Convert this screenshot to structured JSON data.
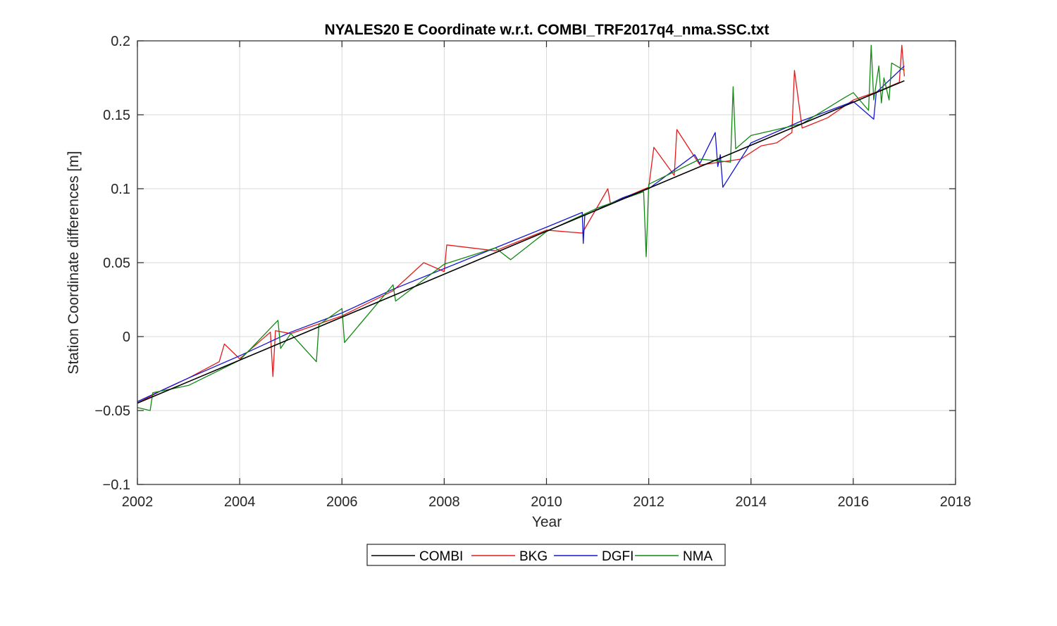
{
  "chart_data": {
    "type": "line",
    "title": "NYALES20 E Coordinate w.r.t. COMBI_TRF2017q4_nma.SSC.txt",
    "xlabel": "Year",
    "ylabel": "Station Coordinate differences [m]",
    "xlim": [
      2002,
      2018
    ],
    "ylim": [
      -0.1,
      0.2
    ],
    "xticks": [
      2002,
      2004,
      2006,
      2008,
      2010,
      2012,
      2014,
      2016,
      2018
    ],
    "yticks": [
      -0.1,
      -0.05,
      0,
      0.05,
      0.1,
      0.15,
      0.2
    ],
    "xtick_labels": [
      "2002",
      "2004",
      "2006",
      "2008",
      "2010",
      "2012",
      "2014",
      "2016",
      "2018"
    ],
    "ytick_labels": [
      "−0.1",
      "−0.05",
      "0",
      "0.05",
      "0.1",
      "0.15",
      "0.2"
    ],
    "grid": true,
    "legend_position": "bottom-center",
    "series": [
      {
        "name": "COMBI",
        "color": "#000000",
        "x": [
          2002.0,
          2017.0
        ],
        "y": [
          -0.045,
          0.173
        ]
      },
      {
        "name": "BKG",
        "color": "#e31a1c",
        "x": [
          2002.0,
          2002.5,
          2003.0,
          2003.6,
          2003.7,
          2004.0,
          2004.6,
          2004.65,
          2004.7,
          2005.0,
          2006.0,
          2007.0,
          2007.6,
          2008.0,
          2008.05,
          2009.0,
          2010.0,
          2010.7,
          2011.2,
          2011.25,
          2012.0,
          2012.1,
          2012.5,
          2012.55,
          2013.0,
          2013.8,
          2014.2,
          2014.5,
          2014.8,
          2014.85,
          2015.0,
          2015.5,
          2016.0,
          2016.5,
          2016.9,
          2016.95,
          2017.0
        ],
        "y": [
          -0.045,
          -0.036,
          -0.028,
          -0.017,
          -0.005,
          -0.015,
          0.003,
          -0.027,
          0.004,
          0.002,
          0.014,
          0.031,
          0.05,
          0.044,
          0.062,
          0.058,
          0.072,
          0.07,
          0.1,
          0.09,
          0.101,
          0.128,
          0.109,
          0.14,
          0.116,
          0.12,
          0.129,
          0.131,
          0.138,
          0.18,
          0.141,
          0.148,
          0.16,
          0.166,
          0.172,
          0.197,
          0.176
        ]
      },
      {
        "name": "DGFI",
        "color": "#1515d1",
        "x": [
          2002.0,
          2003.0,
          2004.0,
          2005.0,
          2006.0,
          2007.0,
          2008.0,
          2009.0,
          2010.0,
          2010.7,
          2010.72,
          2010.75,
          2011.5,
          2012.0,
          2012.9,
          2013.0,
          2013.3,
          2013.35,
          2013.4,
          2013.45,
          2014.0,
          2015.0,
          2016.0,
          2016.4,
          2016.45,
          2017.0
        ],
        "y": [
          -0.044,
          -0.028,
          -0.013,
          0.003,
          0.016,
          0.032,
          0.046,
          0.06,
          0.074,
          0.084,
          0.063,
          0.082,
          0.094,
          0.1,
          0.123,
          0.117,
          0.138,
          0.115,
          0.123,
          0.101,
          0.131,
          0.146,
          0.159,
          0.147,
          0.165,
          0.183
        ]
      },
      {
        "name": "NMA",
        "color": "#118811",
        "x": [
          2002.0,
          2002.25,
          2002.3,
          2003.0,
          2004.0,
          2004.75,
          2004.8,
          2005.0,
          2005.5,
          2005.55,
          2006.0,
          2006.05,
          2007.0,
          2007.05,
          2008.0,
          2009.0,
          2009.3,
          2010.0,
          2011.0,
          2011.9,
          2011.95,
          2012.0,
          2013.0,
          2013.6,
          2013.65,
          2013.7,
          2014.0,
          2015.0,
          2015.8,
          2016.0,
          2016.3,
          2016.35,
          2016.4,
          2016.5,
          2016.55,
          2016.6,
          2016.7,
          2016.75,
          2017.0
        ],
        "y": [
          -0.048,
          -0.05,
          -0.038,
          -0.033,
          -0.016,
          0.011,
          -0.008,
          0.002,
          -0.017,
          0.008,
          0.019,
          -0.004,
          0.035,
          0.024,
          0.049,
          0.06,
          0.052,
          0.071,
          0.087,
          0.098,
          0.054,
          0.103,
          0.12,
          0.118,
          0.169,
          0.127,
          0.136,
          0.144,
          0.161,
          0.165,
          0.153,
          0.197,
          0.16,
          0.183,
          0.158,
          0.175,
          0.16,
          0.185,
          0.18
        ]
      }
    ]
  }
}
